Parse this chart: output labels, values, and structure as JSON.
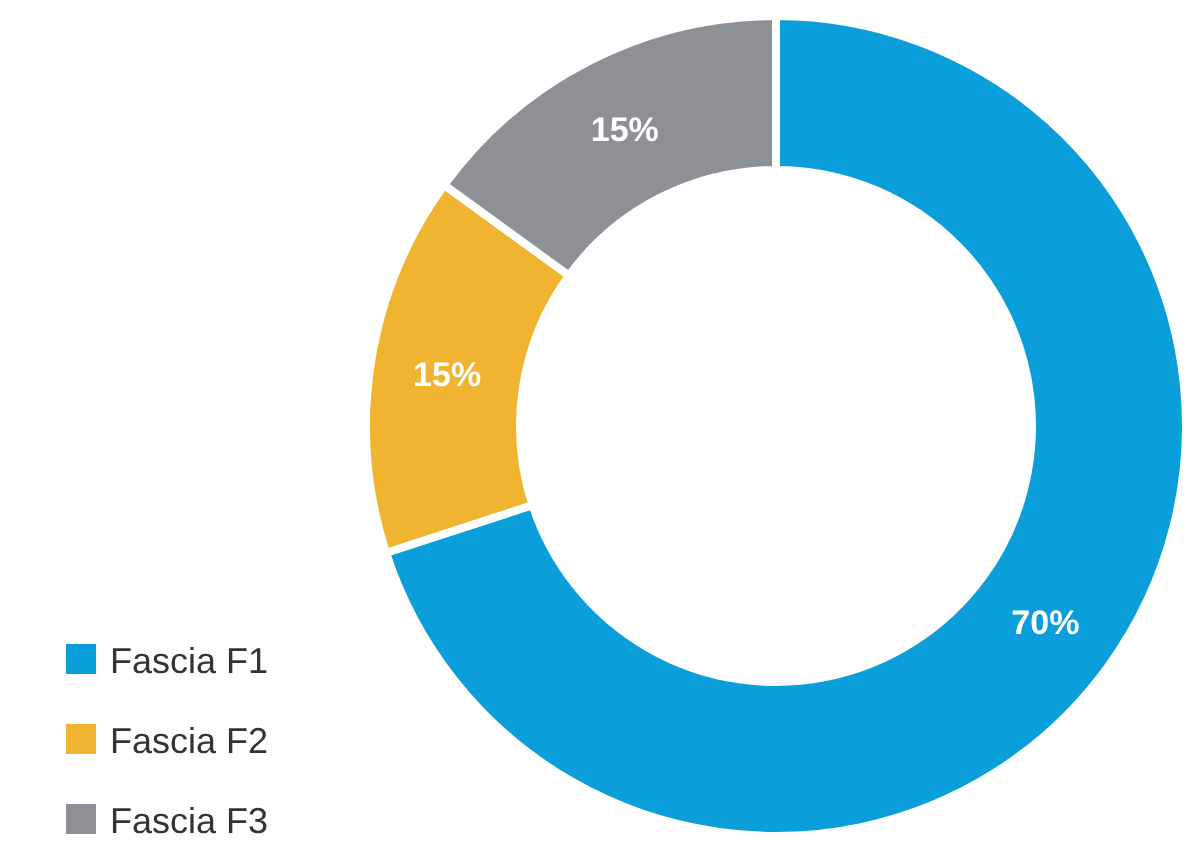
{
  "chart_data": {
    "type": "donut",
    "categories": [
      "Fascia F1",
      "Fascia F2",
      "Fascia F3"
    ],
    "values": [
      70,
      15,
      15
    ],
    "colors": [
      "#0a9fdb",
      "#f0b431",
      "#8c9196"
    ],
    "value_labels": [
      "70%",
      "15%",
      "15%"
    ],
    "legend": "bottom left"
  }
}
